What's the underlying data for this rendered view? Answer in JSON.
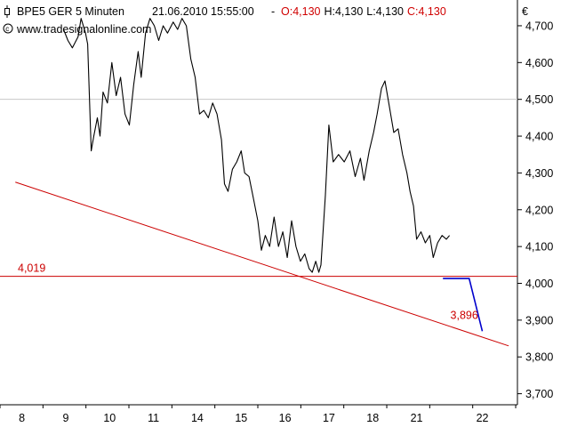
{
  "header": {
    "symbol_icon": "candlestick-icon",
    "instrument": "BPE5 GER 5 Minuten",
    "datetime": "21.06.2010 15:55:00",
    "ohlc": [
      {
        "text": "O:4,130",
        "color": "#d00000"
      },
      {
        "text": "H:4,130",
        "color": "#000000"
      },
      {
        "text": "L:4,130",
        "color": "#000000"
      },
      {
        "text": "C:4,130",
        "color": "#d00000"
      }
    ],
    "copyright_icon": "copyright-icon",
    "website": "www.tradesignalonline.com"
  },
  "chart_data": {
    "type": "line",
    "currency": "€",
    "ylim": [
      3.67,
      4.77
    ],
    "y_ticks": [
      "4,700",
      "4,600",
      "4,500",
      "4,400",
      "4,300",
      "4,200",
      "4,100",
      "4,000",
      "3,900",
      "3,800",
      "3,700"
    ],
    "y_tick_values": [
      4.7,
      4.6,
      4.5,
      4.4,
      4.3,
      4.2,
      4.1,
      4.0,
      3.9,
      3.8,
      3.7
    ],
    "x_ticks": [
      "8",
      "9",
      "10",
      "11",
      "14",
      "15",
      "16",
      "17",
      "18",
      "21",
      "22"
    ],
    "x_tick_positions": [
      0.5,
      1.5,
      2.5,
      3.5,
      4.5,
      5.5,
      6.5,
      7.5,
      8.5,
      9.5,
      11.0
    ],
    "xlim": [
      0,
      11.8
    ],
    "grid": "horizontal at 4,500 only",
    "colors": {
      "price": "#000000",
      "trendline": "#cc0000",
      "projection": "#0000cc",
      "grid": "#c8c8c8"
    },
    "series": [
      {
        "color": "#000000",
        "points": [
          [
            1.45,
            4.69
          ],
          [
            1.55,
            4.66
          ],
          [
            1.65,
            4.64
          ],
          [
            1.78,
            4.67
          ],
          [
            1.85,
            4.72
          ],
          [
            1.95,
            4.68
          ],
          [
            2.0,
            4.65
          ],
          [
            2.08,
            4.36
          ],
          [
            2.14,
            4.4
          ],
          [
            2.22,
            4.45
          ],
          [
            2.28,
            4.4
          ],
          [
            2.35,
            4.52
          ],
          [
            2.45,
            4.49
          ],
          [
            2.55,
            4.6
          ],
          [
            2.65,
            4.51
          ],
          [
            2.75,
            4.56
          ],
          [
            2.85,
            4.46
          ],
          [
            2.95,
            4.43
          ],
          [
            3.05,
            4.54
          ],
          [
            3.15,
            4.63
          ],
          [
            3.22,
            4.56
          ],
          [
            3.32,
            4.68
          ],
          [
            3.42,
            4.72
          ],
          [
            3.52,
            4.7
          ],
          [
            3.62,
            4.66
          ],
          [
            3.72,
            4.7
          ],
          [
            3.82,
            4.68
          ],
          [
            3.95,
            4.71
          ],
          [
            4.05,
            4.69
          ],
          [
            4.15,
            4.72
          ],
          [
            4.25,
            4.7
          ],
          [
            4.35,
            4.61
          ],
          [
            4.45,
            4.56
          ],
          [
            4.55,
            4.46
          ],
          [
            4.65,
            4.47
          ],
          [
            4.75,
            4.45
          ],
          [
            4.85,
            4.49
          ],
          [
            4.95,
            4.46
          ],
          [
            5.05,
            4.39
          ],
          [
            5.12,
            4.27
          ],
          [
            5.2,
            4.25
          ],
          [
            5.3,
            4.31
          ],
          [
            5.4,
            4.33
          ],
          [
            5.5,
            4.36
          ],
          [
            5.58,
            4.3
          ],
          [
            5.68,
            4.29
          ],
          [
            5.78,
            4.23
          ],
          [
            5.88,
            4.17
          ],
          [
            5.96,
            4.09
          ],
          [
            6.05,
            4.13
          ],
          [
            6.15,
            4.1
          ],
          [
            6.25,
            4.18
          ],
          [
            6.35,
            4.1
          ],
          [
            6.45,
            4.14
          ],
          [
            6.55,
            4.07
          ],
          [
            6.65,
            4.17
          ],
          [
            6.75,
            4.1
          ],
          [
            6.85,
            4.06
          ],
          [
            6.95,
            4.08
          ],
          [
            7.05,
            4.04
          ],
          [
            7.12,
            4.03
          ],
          [
            7.2,
            4.06
          ],
          [
            7.27,
            4.03
          ],
          [
            7.32,
            4.05
          ],
          [
            7.42,
            4.24
          ],
          [
            7.5,
            4.43
          ],
          [
            7.6,
            4.33
          ],
          [
            7.72,
            4.35
          ],
          [
            7.85,
            4.33
          ],
          [
            7.98,
            4.36
          ],
          [
            8.1,
            4.29
          ],
          [
            8.22,
            4.34
          ],
          [
            8.3,
            4.28
          ],
          [
            8.42,
            4.36
          ],
          [
            8.52,
            4.41
          ],
          [
            8.6,
            4.46
          ],
          [
            8.7,
            4.53
          ],
          [
            8.78,
            4.55
          ],
          [
            8.88,
            4.48
          ],
          [
            8.98,
            4.41
          ],
          [
            9.08,
            4.42
          ],
          [
            9.18,
            4.35
          ],
          [
            9.28,
            4.3
          ],
          [
            9.35,
            4.25
          ],
          [
            9.43,
            4.21
          ],
          [
            9.5,
            4.12
          ],
          [
            9.6,
            4.14
          ],
          [
            9.7,
            4.11
          ],
          [
            9.8,
            4.13
          ],
          [
            9.88,
            4.07
          ],
          [
            9.98,
            4.11
          ],
          [
            10.08,
            4.13
          ],
          [
            10.18,
            4.12
          ],
          [
            10.25,
            4.13
          ]
        ]
      }
    ],
    "trendline": {
      "color": "#cc0000",
      "from": [
        0.35,
        4.275
      ],
      "to": [
        11.6,
        3.83
      ]
    },
    "level_line": {
      "label": "4,019",
      "value": 4.019,
      "color": "#cc0000"
    },
    "projection": {
      "label": "3,896",
      "color": "#0000cc",
      "points": [
        [
          10.1,
          4.013
        ],
        [
          10.7,
          4.013
        ],
        [
          11.0,
          3.87
        ]
      ]
    }
  }
}
